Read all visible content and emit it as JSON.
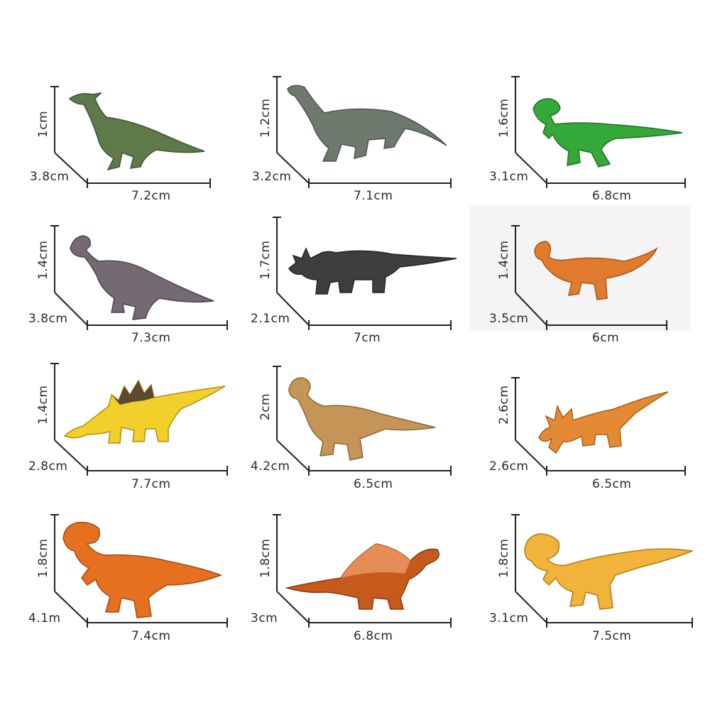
{
  "figures": [
    {
      "id": "sauro-green",
      "height": "1cm",
      "depth": "3.8cm",
      "length": "7.2cm",
      "color": "#5e7a4b"
    },
    {
      "id": "sauro-grey",
      "height": "1.2cm",
      "depth": "3.2cm",
      "length": "7.1cm",
      "color": "#6f7a6f"
    },
    {
      "id": "trex-green",
      "height": "1.6cm",
      "depth": "3.1cm",
      "length": "6.8cm",
      "color": "#35a83a"
    },
    {
      "id": "hadro-grey",
      "height": "1.4cm",
      "depth": "3.8cm",
      "length": "7.3cm",
      "color": "#736a73"
    },
    {
      "id": "trike-black",
      "height": "1.7cm",
      "depth": "2.1cm",
      "length": "7cm",
      "color": "#3e3e3e"
    },
    {
      "id": "dilo-orange",
      "height": "1.4cm",
      "depth": "3.5cm",
      "length": "6cm",
      "color": "#e07a2c"
    },
    {
      "id": "stego-yellow",
      "height": "1.4cm",
      "depth": "2.8cm",
      "length": "7.7cm",
      "color": "#f2cf2a"
    },
    {
      "id": "dilo-tan",
      "height": "2cm",
      "depth": "4.2cm",
      "length": "6.5cm",
      "color": "#c59558"
    },
    {
      "id": "styraco-orange",
      "height": "2.6cm",
      "depth": "2.6cm",
      "length": "6.5cm",
      "color": "#e58a34"
    },
    {
      "id": "allo-orange",
      "height": "1.8cm",
      "depth": "4.1m",
      "length": "7.4cm",
      "color": "#e5701f"
    },
    {
      "id": "spino-orange",
      "height": "1.8cm",
      "depth": "3cm",
      "length": "6.8cm",
      "color": "#c7591d"
    },
    {
      "id": "trex-yellow",
      "height": "1.8cm",
      "depth": "3.1cm",
      "length": "7.5cm",
      "color": "#f1b33a"
    }
  ]
}
